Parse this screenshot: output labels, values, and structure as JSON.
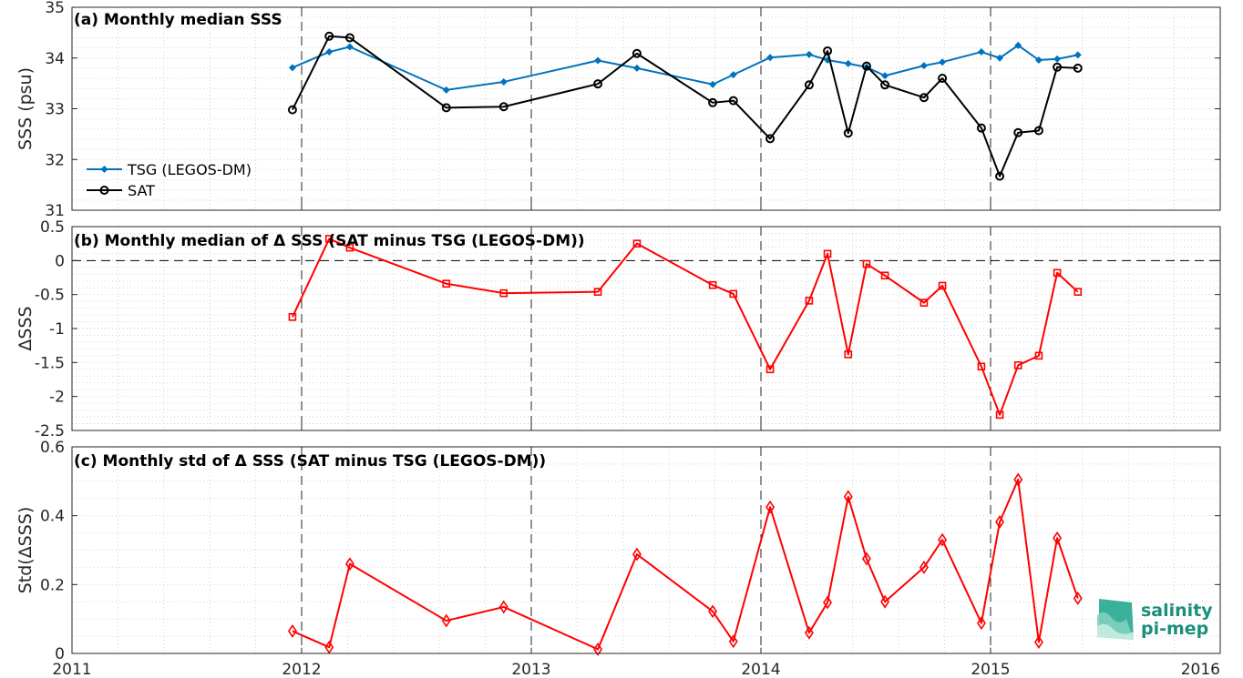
{
  "chart_data": [
    {
      "type": "line",
      "title": "(a) Monthly median SSS",
      "ylabel": "SSS (psu)",
      "xlim": [
        2011,
        2016
      ],
      "ylim": [
        31,
        35
      ],
      "xticks": [
        "2011",
        "2012",
        "2013",
        "2014",
        "2015",
        "2016"
      ],
      "yticks": [
        "31",
        "32",
        "33",
        "34",
        "35"
      ],
      "grid": true,
      "legend_position": "left",
      "series": [
        {
          "name": "TSG (LEGOS-DM)",
          "color": "#0072BD",
          "marker": "dot",
          "x": [
            2011.96,
            2012.12,
            2012.21,
            2012.63,
            2012.88,
            2013.29,
            2013.46,
            2013.79,
            2013.88,
            2014.04,
            2014.21,
            2014.29,
            2014.38,
            2014.46,
            2014.54,
            2014.71,
            2014.79,
            2014.96,
            2015.04,
            2015.12,
            2015.21,
            2015.29,
            2015.38
          ],
          "y": [
            33.81,
            34.12,
            34.22,
            33.37,
            33.53,
            33.95,
            33.8,
            33.48,
            33.67,
            34.01,
            34.07,
            33.96,
            33.89,
            33.82,
            33.65,
            33.85,
            33.92,
            34.12,
            34.0,
            34.25,
            33.96,
            33.98,
            34.06
          ]
        },
        {
          "name": "SAT",
          "color": "#000000",
          "marker": "circle",
          "x": [
            2011.96,
            2012.12,
            2012.21,
            2012.63,
            2012.88,
            2013.29,
            2013.46,
            2013.79,
            2013.88,
            2014.04,
            2014.21,
            2014.29,
            2014.38,
            2014.46,
            2014.54,
            2014.71,
            2014.79,
            2014.96,
            2015.04,
            2015.12,
            2015.21,
            2015.29,
            2015.38
          ],
          "y": [
            32.98,
            34.43,
            34.4,
            33.02,
            33.04,
            33.49,
            34.09,
            33.12,
            33.16,
            32.41,
            33.47,
            34.14,
            32.52,
            33.84,
            33.47,
            33.22,
            33.6,
            32.62,
            31.67,
            32.53,
            32.57,
            33.82,
            33.8
          ]
        }
      ]
    },
    {
      "type": "line",
      "title": "(b) Monthly median of Δ SSS (SAT minus TSG (LEGOS-DM))",
      "ylabel": "ΔSSS",
      "xlim": [
        2011,
        2016
      ],
      "ylim": [
        -2.5,
        0.5
      ],
      "xticks": [
        "2011",
        "2012",
        "2013",
        "2014",
        "2015",
        "2016"
      ],
      "yticks": [
        "-2.5",
        "-2",
        "-1.5",
        "-1",
        "-0.5",
        "0",
        "0.5"
      ],
      "grid": true,
      "reference_line_y": 0,
      "series": [
        {
          "color": "#FF0000",
          "marker": "square",
          "x": [
            2011.96,
            2012.12,
            2012.21,
            2012.63,
            2012.88,
            2013.29,
            2013.46,
            2013.79,
            2013.88,
            2014.04,
            2014.21,
            2014.29,
            2014.38,
            2014.46,
            2014.54,
            2014.71,
            2014.79,
            2014.96,
            2015.04,
            2015.12,
            2015.21,
            2015.29,
            2015.38
          ],
          "y": [
            -0.83,
            0.32,
            0.19,
            -0.34,
            -0.48,
            -0.46,
            0.25,
            -0.36,
            -0.49,
            -1.6,
            -0.59,
            0.1,
            -1.38,
            -0.05,
            -0.22,
            -0.62,
            -0.37,
            -1.56,
            -2.27,
            -1.54,
            -1.4,
            -0.18,
            -0.46
          ]
        }
      ]
    },
    {
      "type": "line",
      "title": "(c) Monthly std of Δ SSS (SAT minus TSG (LEGOS-DM))",
      "ylabel": "Std(ΔSSS)",
      "xlim": [
        2011,
        2016
      ],
      "ylim": [
        0,
        0.6
      ],
      "xticks": [
        "2011",
        "2012",
        "2013",
        "2014",
        "2015",
        "2016"
      ],
      "yticks": [
        "0",
        "0.2",
        "0.4",
        "0.6"
      ],
      "grid": true,
      "series": [
        {
          "color": "#FF0000",
          "marker": "diamond",
          "x": [
            2011.96,
            2012.12,
            2012.21,
            2012.63,
            2012.88,
            2013.29,
            2013.46,
            2013.79,
            2013.88,
            2014.04,
            2014.21,
            2014.29,
            2014.38,
            2014.46,
            2014.54,
            2014.71,
            2014.79,
            2014.96,
            2015.04,
            2015.12,
            2015.21,
            2015.29,
            2015.38
          ],
          "y": [
            0.065,
            0.018,
            0.26,
            0.095,
            0.135,
            0.012,
            0.288,
            0.122,
            0.035,
            0.425,
            0.06,
            0.148,
            0.455,
            0.275,
            0.15,
            0.25,
            0.33,
            0.088,
            0.382,
            0.505,
            0.033,
            0.335,
            0.16
          ]
        }
      ]
    }
  ],
  "logo": {
    "line1": "salinity",
    "line2": "pi-mep",
    "color": "#1a8f7a"
  }
}
